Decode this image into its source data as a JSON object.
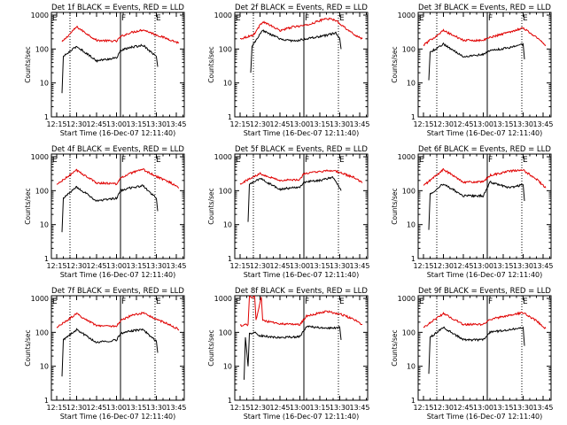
{
  "figure": {
    "colors": {
      "background": "#ffffff",
      "axes": "#000000",
      "events": "#000000",
      "lld": "#e00000"
    }
  },
  "chart_data": [
    {
      "type": "line",
      "title": "Det 1f BLACK = Events, RED = LLD",
      "xlabel": "Start Time (16-Dec-07 12:11:40)",
      "ylabel": "Counts/sec",
      "x_ticks": [
        "12:15",
        "12:30",
        "12:45",
        "13:00",
        "13:15",
        "13:30",
        "13:45"
      ],
      "y_ticks": [
        "1",
        "10",
        "100",
        "1000"
      ],
      "y_scale": "log",
      "ylim": [
        1,
        1200
      ],
      "dotted_markers": [
        "12:25",
        "13:29"
      ],
      "solid_markers": [
        "13:03"
      ],
      "flags": [
        {
          "label": "F",
          "at": "13:03"
        },
        {
          "label": "E",
          "at": "13:29"
        },
        {
          "label": "E",
          "at": "12:11"
        }
      ],
      "series": [
        {
          "name": "LLD",
          "color": "#e00000",
          "x": [
            "12:19",
            "12:30",
            "12:45",
            "13:00",
            "13:03",
            "13:10",
            "13:20",
            "13:30",
            "13:40",
            "13:47"
          ],
          "values": [
            160,
            450,
            180,
            170,
            230,
            300,
            370,
            260,
            190,
            150
          ]
        },
        {
          "name": "Events",
          "color": "#000000",
          "x": [
            "12:19",
            "12:20",
            "12:30",
            "12:45",
            "13:00",
            "13:03",
            "13:10",
            "13:20",
            "13:30",
            "13:31"
          ],
          "values": [
            5,
            60,
            120,
            45,
            55,
            90,
            110,
            130,
            60,
            30
          ]
        }
      ]
    },
    {
      "type": "line",
      "title": "Det 2f BLACK = Events, RED = LLD",
      "xlabel": "Start Time (16-Dec-07 12:11:40)",
      "ylabel": "Counts/sec",
      "x_ticks": [
        "12:15",
        "12:30",
        "12:45",
        "13:00",
        "13:15",
        "13:30",
        "13:45"
      ],
      "y_ticks": [
        "1",
        "10",
        "100",
        "1000"
      ],
      "y_scale": "log",
      "ylim": [
        1,
        1200
      ],
      "dotted_markers": [
        "12:25",
        "13:29"
      ],
      "solid_markers": [
        "13:03"
      ],
      "flags": [
        {
          "label": "F",
          "at": "13:03"
        },
        {
          "label": "E",
          "at": "13:29"
        },
        {
          "label": "E",
          "at": "12:11"
        }
      ],
      "series": [
        {
          "name": "LLD",
          "color": "#e00000",
          "x": [
            "12:15",
            "12:25",
            "12:32",
            "12:45",
            "12:55",
            "13:05",
            "13:20",
            "13:27",
            "13:40",
            "13:47"
          ],
          "values": [
            200,
            260,
            650,
            350,
            450,
            500,
            800,
            700,
            280,
            200
          ]
        },
        {
          "name": "Events",
          "color": "#000000",
          "x": [
            "12:23",
            "12:24",
            "12:32",
            "12:45",
            "12:55",
            "13:05",
            "13:20",
            "13:27",
            "13:30",
            "13:31"
          ],
          "values": [
            20,
            120,
            350,
            200,
            170,
            200,
            250,
            300,
            200,
            100
          ]
        }
      ]
    },
    {
      "type": "line",
      "title": "Det 3f BLACK = Events, RED = LLD",
      "xlabel": "Start Time (16-Dec-07 12:11:40)",
      "ylabel": "Counts/sec",
      "x_ticks": [
        "12:15",
        "12:30",
        "12:45",
        "13:00",
        "13:15",
        "13:30",
        "13:45"
      ],
      "y_ticks": [
        "1",
        "10",
        "100",
        "1000"
      ],
      "y_scale": "log",
      "ylim": [
        1,
        1200
      ],
      "dotted_markers": [
        "12:25",
        "13:29"
      ],
      "solid_markers": [
        "13:03"
      ],
      "flags": [
        {
          "label": "F",
          "at": "13:03"
        },
        {
          "label": "E",
          "at": "13:29"
        },
        {
          "label": "E",
          "at": "12:11"
        }
      ],
      "series": [
        {
          "name": "LLD",
          "color": "#e00000",
          "x": [
            "12:15",
            "12:30",
            "12:45",
            "13:00",
            "13:05",
            "13:20",
            "13:30",
            "13:40",
            "13:47"
          ],
          "values": [
            130,
            350,
            180,
            180,
            220,
            320,
            420,
            220,
            130
          ]
        },
        {
          "name": "Events",
          "color": "#000000",
          "x": [
            "12:19",
            "12:20",
            "12:30",
            "12:45",
            "13:00",
            "13:05",
            "13:20",
            "13:30",
            "13:31"
          ],
          "values": [
            12,
            80,
            140,
            60,
            70,
            90,
            110,
            140,
            50
          ]
        }
      ]
    },
    {
      "type": "line",
      "title": "Det 4f BLACK = Events, RED = LLD",
      "xlabel": "Start Time (16-Dec-07 12:11:40)",
      "ylabel": "Counts/sec",
      "x_ticks": [
        "12:15",
        "12:30",
        "12:45",
        "13:00",
        "13:15",
        "13:30",
        "13:45"
      ],
      "y_ticks": [
        "1",
        "10",
        "100",
        "1000"
      ],
      "y_scale": "log",
      "ylim": [
        1,
        1200
      ],
      "dotted_markers": [
        "12:25",
        "13:29"
      ],
      "solid_markers": [
        "13:03"
      ],
      "flags": [
        {
          "label": "F",
          "at": "13:03"
        },
        {
          "label": "E",
          "at": "13:29"
        },
        {
          "label": "E",
          "at": "12:11"
        }
      ],
      "series": [
        {
          "name": "LLD",
          "color": "#e00000",
          "x": [
            "12:15",
            "12:30",
            "12:45",
            "13:00",
            "13:03",
            "13:10",
            "13:20",
            "13:30",
            "13:40",
            "13:47"
          ],
          "values": [
            150,
            400,
            170,
            160,
            230,
            320,
            420,
            260,
            180,
            120
          ]
        },
        {
          "name": "Events",
          "color": "#000000",
          "x": [
            "12:19",
            "12:20",
            "12:30",
            "12:45",
            "13:00",
            "13:03",
            "13:10",
            "13:20",
            "13:30",
            "13:31"
          ],
          "values": [
            6,
            60,
            130,
            50,
            60,
            100,
            120,
            140,
            60,
            25
          ]
        }
      ]
    },
    {
      "type": "line",
      "title": "Det 5f BLACK = Events, RED = LLD",
      "xlabel": "Start Time (16-Dec-07 12:11:40)",
      "ylabel": "Counts/sec",
      "x_ticks": [
        "12:15",
        "12:30",
        "12:45",
        "13:00",
        "13:15",
        "13:30",
        "13:45"
      ],
      "y_ticks": [
        "1",
        "10",
        "100",
        "1000"
      ],
      "y_scale": "log",
      "ylim": [
        1,
        1200
      ],
      "dotted_markers": [
        "12:25",
        "13:29"
      ],
      "solid_markers": [
        "13:03"
      ],
      "flags": [
        {
          "label": "F",
          "at": "13:03"
        },
        {
          "label": "E",
          "at": "13:29"
        },
        {
          "label": "E",
          "at": "12:11"
        }
      ],
      "series": [
        {
          "name": "LLD",
          "color": "#e00000",
          "x": [
            "12:15",
            "12:30",
            "12:45",
            "13:00",
            "13:03",
            "13:15",
            "13:25",
            "13:40",
            "13:47"
          ],
          "values": [
            160,
            320,
            200,
            210,
            320,
            360,
            400,
            250,
            170
          ]
        },
        {
          "name": "Events",
          "color": "#000000",
          "x": [
            "12:21",
            "12:22",
            "12:30",
            "12:45",
            "13:00",
            "13:03",
            "13:15",
            "13:25",
            "13:31"
          ],
          "values": [
            12,
            150,
            230,
            110,
            130,
            180,
            200,
            250,
            100
          ]
        }
      ]
    },
    {
      "type": "line",
      "title": "Det 6f BLACK = Events, RED = LLD",
      "xlabel": "Start Time (16-Dec-07 12:11:40)",
      "ylabel": "Counts/sec",
      "x_ticks": [
        "12:15",
        "12:30",
        "12:45",
        "13:00",
        "13:15",
        "13:30",
        "13:45"
      ],
      "y_ticks": [
        "1",
        "10",
        "100",
        "1000"
      ],
      "y_scale": "log",
      "ylim": [
        1,
        1200
      ],
      "dotted_markers": [
        "12:25",
        "13:29"
      ],
      "solid_markers": [
        "13:03"
      ],
      "flags": [
        {
          "label": "F",
          "at": "13:03"
        },
        {
          "label": "E",
          "at": "13:29"
        },
        {
          "label": "E",
          "at": "12:11"
        }
      ],
      "series": [
        {
          "name": "LLD",
          "color": "#e00000",
          "x": [
            "12:15",
            "12:30",
            "12:45",
            "13:00",
            "13:05",
            "13:20",
            "13:30",
            "13:40",
            "13:47"
          ],
          "values": [
            140,
            420,
            180,
            180,
            280,
            380,
            400,
            220,
            120
          ]
        },
        {
          "name": "Events",
          "color": "#000000",
          "x": [
            "12:19",
            "12:20",
            "12:30",
            "12:45",
            "13:00",
            "13:05",
            "13:20",
            "13:30",
            "13:31"
          ],
          "values": [
            7,
            80,
            160,
            70,
            70,
            180,
            120,
            150,
            50
          ]
        }
      ]
    },
    {
      "type": "line",
      "title": "Det 7f BLACK = Events, RED = LLD",
      "xlabel": "Start Time (16-Dec-07 12:11:40)",
      "ylabel": "Counts/sec",
      "x_ticks": [
        "12:15",
        "12:30",
        "12:45",
        "13:00",
        "13:15",
        "13:30",
        "13:45"
      ],
      "y_ticks": [
        "1",
        "10",
        "100",
        "1000"
      ],
      "y_scale": "log",
      "ylim": [
        1,
        1200
      ],
      "dotted_markers": [
        "12:25",
        "13:29"
      ],
      "solid_markers": [
        "13:03"
      ],
      "flags": [
        {
          "label": "F",
          "at": "13:03"
        },
        {
          "label": "E",
          "at": "13:29"
        },
        {
          "label": "E",
          "at": "12:11"
        }
      ],
      "series": [
        {
          "name": "LLD",
          "color": "#e00000",
          "x": [
            "12:15",
            "12:30",
            "12:45",
            "13:00",
            "13:03",
            "13:10",
            "13:20",
            "13:30",
            "13:40",
            "13:47"
          ],
          "values": [
            140,
            350,
            160,
            150,
            220,
            300,
            380,
            240,
            170,
            120
          ]
        },
        {
          "name": "Events",
          "color": "#000000",
          "x": [
            "12:19",
            "12:20",
            "12:30",
            "12:45",
            "13:00",
            "13:03",
            "13:10",
            "13:20",
            "13:30",
            "13:31"
          ],
          "values": [
            5,
            60,
            120,
            50,
            60,
            90,
            110,
            120,
            55,
            25
          ]
        }
      ]
    },
    {
      "type": "line",
      "title": "Det 8f BLACK = Events, RED = LLD",
      "xlabel": "Start Time (16-Dec-07 12:11:40)",
      "ylabel": "Counts/sec",
      "x_ticks": [
        "12:15",
        "12:30",
        "12:45",
        "13:00",
        "13:15",
        "13:30",
        "13:45"
      ],
      "y_ticks": [
        "1",
        "10",
        "100",
        "1000"
      ],
      "y_scale": "log",
      "ylim": [
        1,
        1200
      ],
      "dotted_markers": [
        "12:25",
        "13:29"
      ],
      "solid_markers": [
        "13:03"
      ],
      "flags": [
        {
          "label": "F",
          "at": "13:03"
        },
        {
          "label": "E",
          "at": "13:29"
        },
        {
          "label": "E",
          "at": "12:11"
        }
      ],
      "series": [
        {
          "name": "LLD",
          "color": "#e00000",
          "x": [
            "12:15",
            "12:21",
            "12:22",
            "12:26",
            "12:27",
            "12:31",
            "12:32",
            "12:45",
            "13:00",
            "13:05",
            "13:20",
            "13:30",
            "13:40",
            "13:47"
          ],
          "values": [
            160,
            170,
            1100,
            1100,
            230,
            1100,
            220,
            180,
            170,
            300,
            420,
            350,
            250,
            170
          ]
        },
        {
          "name": "Events",
          "color": "#000000",
          "x": [
            "12:18",
            "12:19",
            "12:21",
            "12:22",
            "12:27",
            "12:29",
            "12:45",
            "13:00",
            "13:05",
            "13:20",
            "13:30",
            "13:31"
          ],
          "values": [
            4,
            70,
            10,
            90,
            100,
            80,
            70,
            75,
            150,
            130,
            140,
            60
          ]
        }
      ]
    },
    {
      "type": "line",
      "title": "Det 9f BLACK = Events, RED = LLD",
      "xlabel": "Start Time (16-Dec-07 12:11:40)",
      "ylabel": "Counts/sec",
      "x_ticks": [
        "12:15",
        "12:30",
        "12:45",
        "13:00",
        "13:15",
        "13:30",
        "13:45"
      ],
      "y_ticks": [
        "1",
        "10",
        "100",
        "1000"
      ],
      "y_scale": "log",
      "ylim": [
        1,
        1200
      ],
      "dotted_markers": [
        "12:25",
        "13:29"
      ],
      "solid_markers": [
        "13:03"
      ],
      "flags": [
        {
          "label": "F",
          "at": "13:03"
        },
        {
          "label": "E",
          "at": "13:29"
        },
        {
          "label": "E",
          "at": "12:11"
        }
      ],
      "series": [
        {
          "name": "LLD",
          "color": "#e00000",
          "x": [
            "12:15",
            "12:30",
            "12:45",
            "13:00",
            "13:05",
            "13:20",
            "13:30",
            "13:40",
            "13:47"
          ],
          "values": [
            140,
            360,
            170,
            170,
            240,
            320,
            380,
            220,
            130
          ]
        },
        {
          "name": "Events",
          "color": "#000000",
          "x": [
            "12:19",
            "12:20",
            "12:30",
            "12:45",
            "13:00",
            "13:05",
            "13:20",
            "13:30",
            "13:31"
          ],
          "values": [
            6,
            70,
            140,
            60,
            60,
            100,
            120,
            140,
            40
          ]
        }
      ]
    }
  ]
}
